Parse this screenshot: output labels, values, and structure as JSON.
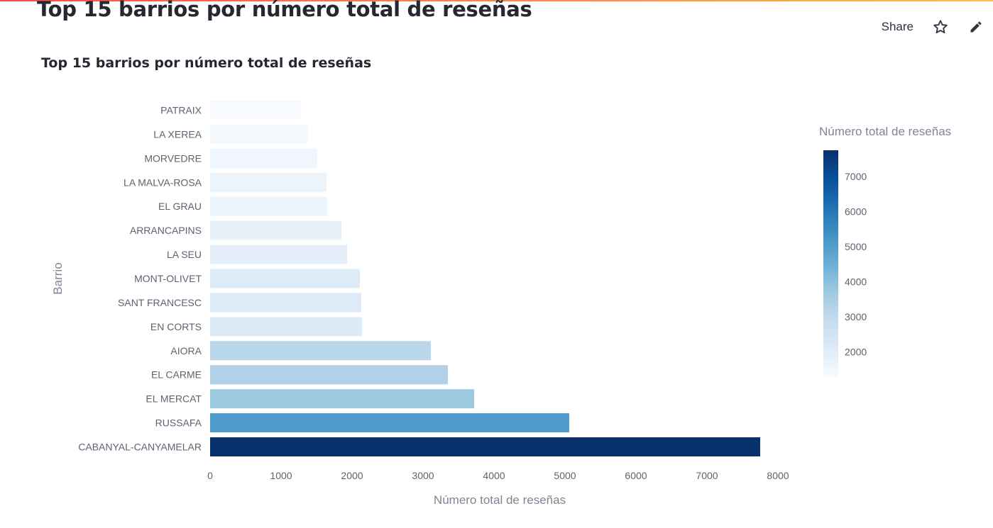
{
  "page": {
    "title": "Top 15 barrios por número total de reseñas",
    "share_label": "Share",
    "icons": [
      "star-icon",
      "edit-pencil-icon"
    ]
  },
  "chart_data": {
    "type": "bar",
    "orientation": "horizontal",
    "title": "Top 15 barrios por número total de reseñas",
    "xlabel": "Número total de reseñas",
    "ylabel": "Barrio",
    "xlim": [
      0,
      8000
    ],
    "xticks": [
      "0",
      "1000",
      "2000",
      "3000",
      "4000",
      "5000",
      "6000",
      "7000",
      "8000"
    ],
    "categories": [
      "PATRAIX",
      "LA XEREA",
      "MORVEDRE",
      "LA MALVA-ROSA",
      "EL GRAU",
      "ARRANCAPINS",
      "LA SEU",
      "MONT-OLIVET",
      "SANT FRANCESC",
      "EN CORTS",
      "AIORA",
      "EL CARME",
      "EL MERCAT",
      "RUSSAFA",
      "CABANYAL-CANYAMELAR"
    ],
    "values": [
      1280,
      1370,
      1510,
      1640,
      1650,
      1850,
      1930,
      2110,
      2130,
      2140,
      3110,
      3350,
      3720,
      5060,
      7750
    ],
    "colorscale": "Blues",
    "colorbar": {
      "title": "Número total de reseñas",
      "range": [
        1280,
        7750
      ],
      "ticks": [
        "2000",
        "3000",
        "4000",
        "5000",
        "6000",
        "7000"
      ]
    },
    "grid": false
  }
}
